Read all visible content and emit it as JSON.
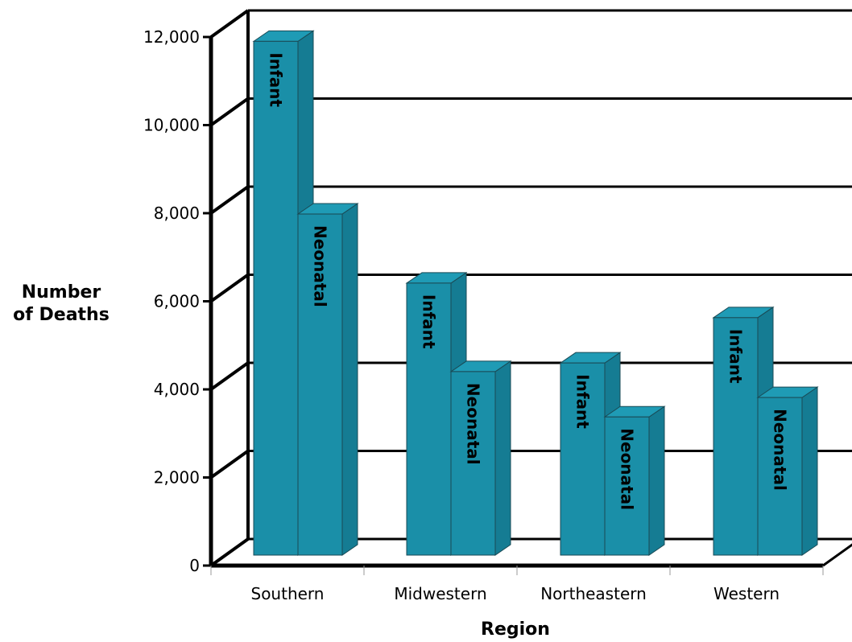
{
  "chart_data": {
    "type": "bar",
    "categories": [
      "Southern",
      "Midwestern",
      "Northeastern",
      "Western"
    ],
    "series": [
      {
        "name": "Infant",
        "values": [
          11900,
          6300,
          4450,
          5500
        ]
      },
      {
        "name": "Neonatal",
        "values": [
          7900,
          4250,
          3200,
          3650
        ]
      }
    ],
    "bar_labels": [
      "Infant",
      "Neonatal"
    ],
    "xlabel": "Region",
    "ylabel_lines": [
      "Number",
      "of Deaths"
    ],
    "ylim": [
      0,
      12000
    ],
    "yticks": [
      0,
      2000,
      4000,
      6000,
      8000,
      10000,
      12000
    ],
    "ytick_labels": [
      "0",
      "2,000",
      "4,000",
      "6,000",
      "8,000",
      "10,000",
      "12,000"
    ],
    "grid": true,
    "style": "3d",
    "bar_color": "#1a8fa8"
  }
}
